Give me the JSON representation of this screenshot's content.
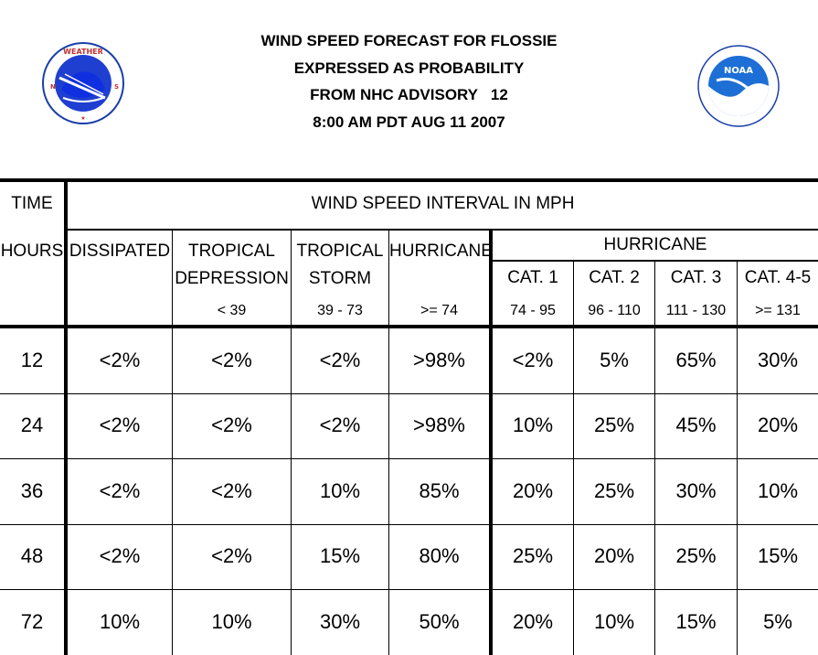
{
  "header": {
    "title_lines": [
      "WIND SPEED FORECAST FOR FLOSSIE",
      "EXPRESSED AS PROBABILITY",
      "FROM NHC ADVISORY   12",
      "8:00 AM PDT AUG 11 2007"
    ],
    "nws_logo_text": "NATIONAL WEATHER SERVICE",
    "noaa_logo_text": "NOAA"
  },
  "table": {
    "time_label": "TIME",
    "interval_label": "WIND SPEED INTERVAL IN MPH",
    "hours_label": "HOURS",
    "hurricane_group_label": "HURRICANE",
    "columns": [
      {
        "line1": "DISSIPATED",
        "line2": "",
        "range": ""
      },
      {
        "line1": "TROPICAL",
        "line2": "DEPRESSION",
        "range": "< 39"
      },
      {
        "line1": "TROPICAL",
        "line2": "STORM",
        "range": "39 - 73"
      },
      {
        "line1": "HURRICANE",
        "line2": "",
        "range": ">= 74"
      },
      {
        "line1": "",
        "line2": "CAT. 1",
        "range": "74 - 95"
      },
      {
        "line1": "",
        "line2": "CAT. 2",
        "range": "96 - 110"
      },
      {
        "line1": "",
        "line2": "CAT. 3",
        "range": "111 - 130"
      },
      {
        "line1": "",
        "line2": "CAT. 4-5",
        "range": ">= 131"
      }
    ],
    "rows": [
      {
        "hour": "12",
        "values": [
          "<2%",
          "<2%",
          "<2%",
          ">98%",
          "<2%",
          "5%",
          "65%",
          "30%"
        ]
      },
      {
        "hour": "24",
        "values": [
          "<2%",
          "<2%",
          "<2%",
          ">98%",
          "10%",
          "25%",
          "45%",
          "20%"
        ]
      },
      {
        "hour": "36",
        "values": [
          "<2%",
          "<2%",
          "10%",
          "85%",
          "20%",
          "25%",
          "30%",
          "10%"
        ]
      },
      {
        "hour": "48",
        "values": [
          "<2%",
          "<2%",
          "15%",
          "80%",
          "25%",
          "20%",
          "25%",
          "15%"
        ]
      },
      {
        "hour": "72",
        "values": [
          "10%",
          "10%",
          "30%",
          "50%",
          "20%",
          "10%",
          "15%",
          "5%"
        ]
      }
    ]
  }
}
